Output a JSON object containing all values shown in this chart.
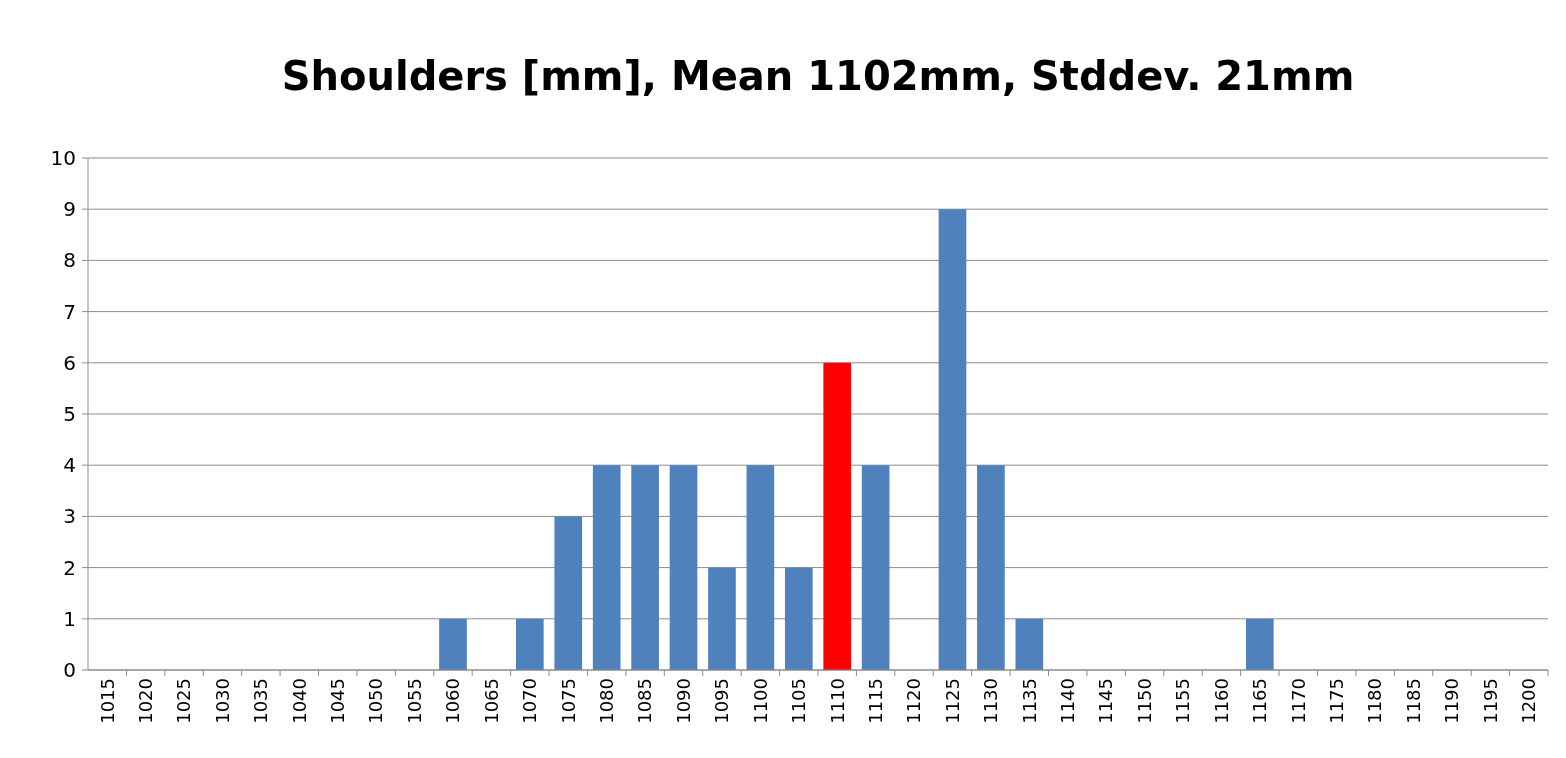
{
  "chart_data": {
    "type": "bar",
    "title": "Shoulders [mm], Mean 1102mm, Stddev. 21mm",
    "categories": [
      "1015",
      "1020",
      "1025",
      "1030",
      "1035",
      "1040",
      "1045",
      "1050",
      "1055",
      "1060",
      "1065",
      "1070",
      "1075",
      "1080",
      "1085",
      "1090",
      "1095",
      "1100",
      "1105",
      "1110",
      "1115",
      "1120",
      "1125",
      "1130",
      "1135",
      "1140",
      "1145",
      "1150",
      "1155",
      "1160",
      "1165",
      "1170",
      "1175",
      "1180",
      "1185",
      "1190",
      "1195",
      "1200"
    ],
    "values": [
      0,
      0,
      0,
      0,
      0,
      0,
      0,
      0,
      0,
      1,
      0,
      1,
      3,
      4,
      4,
      4,
      2,
      4,
      2,
      6,
      4,
      0,
      9,
      4,
      1,
      0,
      0,
      0,
      0,
      0,
      1,
      0,
      0,
      0,
      0,
      0,
      0,
      0
    ],
    "colors": [
      "#4f81bd",
      "#4f81bd",
      "#4f81bd",
      "#4f81bd",
      "#4f81bd",
      "#4f81bd",
      "#4f81bd",
      "#4f81bd",
      "#4f81bd",
      "#4f81bd",
      "#4f81bd",
      "#4f81bd",
      "#4f81bd",
      "#4f81bd",
      "#4f81bd",
      "#4f81bd",
      "#4f81bd",
      "#4f81bd",
      "#4f81bd",
      "#ff0000",
      "#4f81bd",
      "#4f81bd",
      "#4f81bd",
      "#4f81bd",
      "#4f81bd",
      "#4f81bd",
      "#4f81bd",
      "#4f81bd",
      "#4f81bd",
      "#4f81bd",
      "#4f81bd",
      "#4f81bd",
      "#4f81bd",
      "#4f81bd",
      "#4f81bd",
      "#4f81bd",
      "#4f81bd",
      "#4f81bd"
    ],
    "ylim": [
      0,
      10
    ],
    "yticks": [
      0,
      1,
      2,
      3,
      4,
      5,
      6,
      7,
      8,
      9,
      10
    ],
    "grid": "y"
  }
}
